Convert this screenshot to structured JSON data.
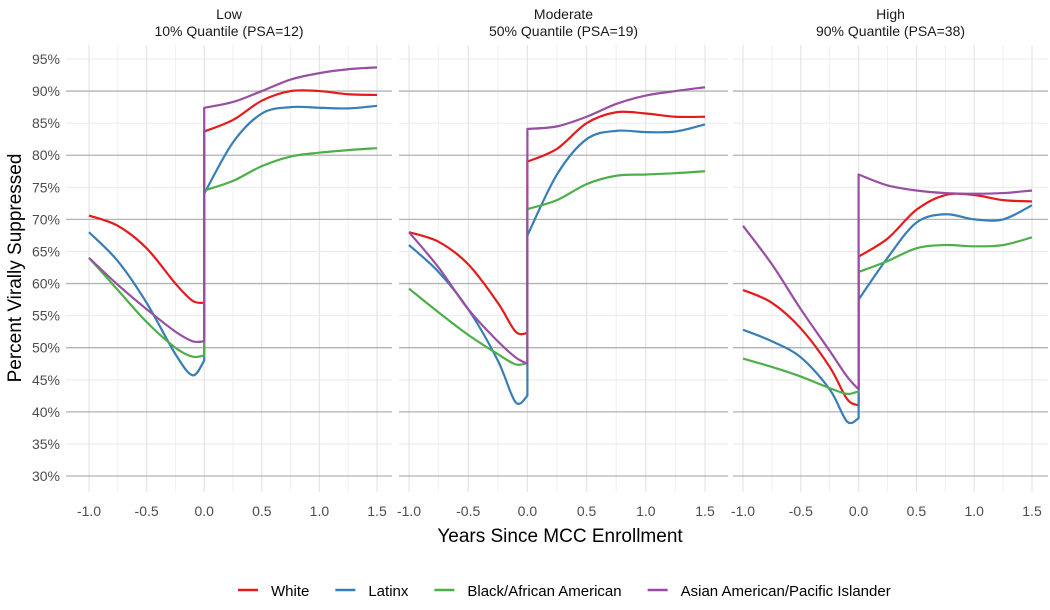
{
  "chart_data": {
    "type": "line",
    "ylabel": "Percent Virally Suppressed",
    "xlabel": "Years Since MCC Enrollment",
    "ylim": [
      0.3,
      0.95
    ],
    "xlim": [
      -1.0,
      1.5
    ],
    "y_ticks": [
      "30%",
      "35%",
      "40%",
      "45%",
      "50%",
      "55%",
      "60%",
      "65%",
      "70%",
      "75%",
      "80%",
      "85%",
      "90%",
      "95%"
    ],
    "y_tick_values": [
      30,
      35,
      40,
      45,
      50,
      55,
      60,
      65,
      70,
      75,
      80,
      85,
      90,
      95
    ],
    "x_ticks": [
      "-1.0",
      "-0.5",
      "0.0",
      "0.5",
      "1.0",
      "1.5"
    ],
    "x_tick_values": [
      -1.0,
      -0.5,
      0.0,
      0.5,
      1.0,
      1.5
    ],
    "grid": true,
    "legend_position": "bottom",
    "x": [
      -1.0,
      -0.75,
      -0.5,
      -0.25,
      -0.1,
      0.0,
      0.0,
      0.25,
      0.5,
      0.75,
      1.0,
      1.25,
      1.5
    ],
    "panels": [
      {
        "title_line1": "Low",
        "title_line2": "10% Quantile (PSA=12)",
        "series": [
          {
            "name": "White",
            "values": [
              70.6,
              69,
              65.5,
              60,
              57.3,
              57,
              83.7,
              85.5,
              88.5,
              90,
              90,
              89.5,
              89.4
            ]
          },
          {
            "name": "Latinx",
            "values": [
              68,
              63.5,
              57,
              49,
              45.7,
              48,
              74,
              82,
              86.5,
              87.5,
              87.4,
              87.3,
              87.7
            ]
          },
          {
            "name": "Black/African American",
            "values": [
              64,
              59,
              54,
              50,
              48.6,
              48.8,
              74.5,
              76,
              78.3,
              79.8,
              80.4,
              80.8,
              81.1
            ]
          },
          {
            "name": "Asian American/Pacific Islander",
            "values": [
              64,
              59.8,
              56,
              52.5,
              51,
              51,
              87.4,
              88.3,
              90,
              91.8,
              92.8,
              93.4,
              93.7
            ]
          }
        ]
      },
      {
        "title_line1": "Moderate",
        "title_line2": "50% Quantile (PSA=19)",
        "series": [
          {
            "name": "White",
            "values": [
              68,
              66.5,
              63,
              57,
              52.5,
              52.3,
              79,
              81,
              85,
              86.7,
              86.5,
              86,
              86
            ]
          },
          {
            "name": "Latinx",
            "values": [
              66,
              61.8,
              56,
              48,
              41.5,
              42.5,
              67.5,
              77,
              82.5,
              83.8,
              83.6,
              83.7,
              84.8
            ]
          },
          {
            "name": "Black/African American",
            "values": [
              59.2,
              55.5,
              52,
              49,
              47.4,
              47.6,
              71.6,
              73,
              75.5,
              76.8,
              77,
              77.2,
              77.5
            ]
          },
          {
            "name": "Asian American/Pacific Islander",
            "values": [
              68,
              62.5,
              56,
              51,
              48.5,
              47.5,
              84.1,
              84.5,
              86,
              88,
              89.3,
              90,
              90.6
            ]
          }
        ]
      },
      {
        "title_line1": "High",
        "title_line2": "90% Quantile (PSA=38)",
        "series": [
          {
            "name": "White",
            "values": [
              59,
              57,
              53,
              47,
              42,
              41,
              64.2,
              67,
              71.5,
              73.8,
              73.8,
              73,
              72.8
            ]
          },
          {
            "name": "Latinx",
            "values": [
              52.8,
              51,
              48.5,
              43.5,
              38.5,
              39,
              57.5,
              64,
              69.5,
              70.8,
              70,
              70,
              72.2
            ]
          },
          {
            "name": "Black/African American",
            "values": [
              48.3,
              47,
              45.5,
              43.7,
              42.8,
              43.2,
              61.8,
              63.5,
              65.5,
              66,
              65.8,
              66,
              67.2
            ]
          },
          {
            "name": "Asian American/Pacific Islander",
            "values": [
              69,
              63,
              56,
              49.5,
              45.5,
              43.5,
              77,
              75.3,
              74.5,
              74.1,
              74,
              74.1,
              74.5
            ]
          }
        ]
      }
    ],
    "legend": [
      {
        "name": "White",
        "color": "#e41a1c"
      },
      {
        "name": "Latinx",
        "color": "#377eb8"
      },
      {
        "name": "Black/African American",
        "color": "#4daf4a"
      },
      {
        "name": "Asian American/Pacific Islander",
        "color": "#984ea3"
      }
    ]
  }
}
